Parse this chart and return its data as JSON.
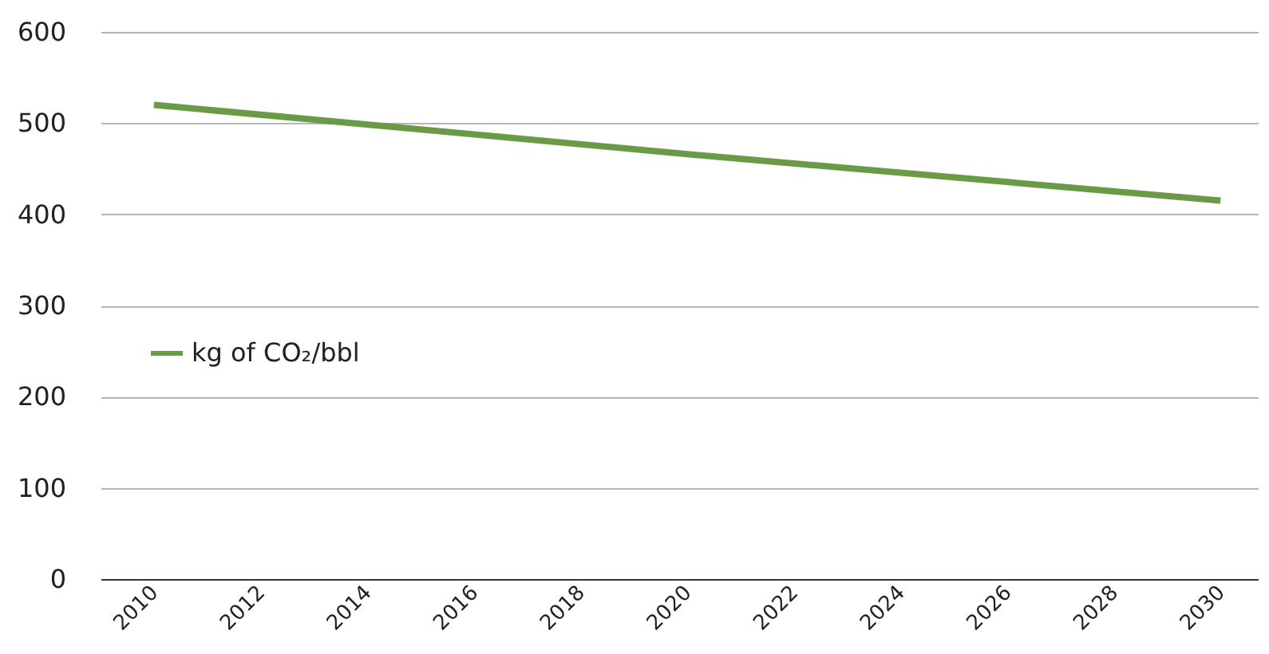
{
  "chart_data": {
    "type": "line",
    "x": [
      2010,
      2020,
      2030
    ],
    "series": [
      {
        "name": "kg of CO₂/bbl",
        "color": "#6b9a47",
        "values": [
          520,
          466,
          415
        ]
      }
    ],
    "xlim": [
      2009,
      2030.7
    ],
    "xticks": [
      2010,
      2012,
      2014,
      2016,
      2018,
      2020,
      2022,
      2024,
      2026,
      2028,
      2030
    ],
    "ylim": [
      0,
      600
    ],
    "yticks": [
      0,
      100,
      200,
      300,
      400,
      500,
      600
    ],
    "grid": "y",
    "legend": "left",
    "line_style": "solid",
    "marker": "none"
  }
}
